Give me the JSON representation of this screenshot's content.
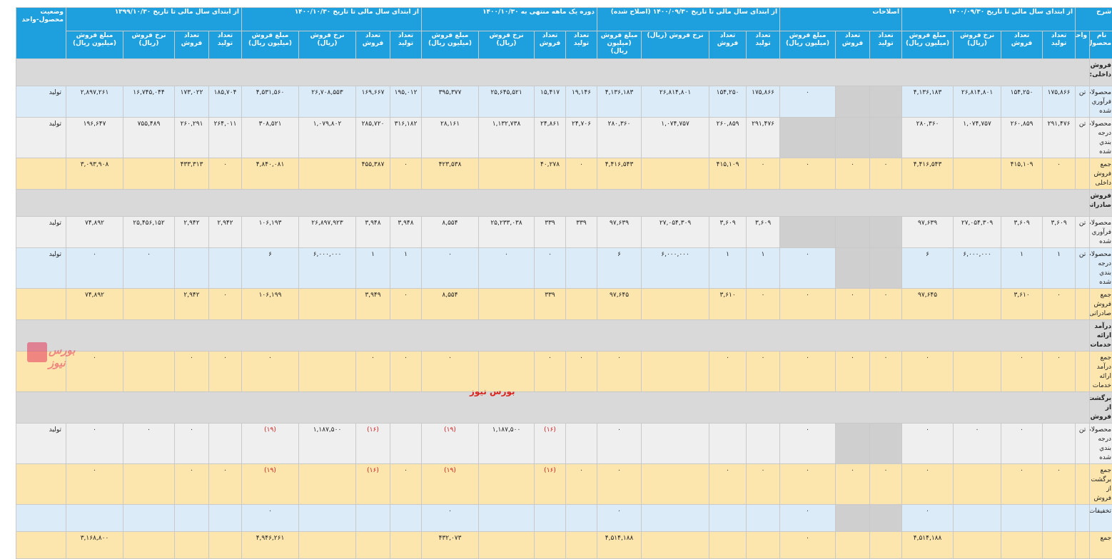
{
  "header": {
    "groups": [
      "شرح",
      "از ابتدای سال مالی تا تاریخ ۱۴۰۰/۰۹/۳۰",
      "اصلاحات",
      "از ابتدای سال مالی تا تاریخ ۱۴۰۰/۰۹/۳۰ (اصلاح شده)",
      "دوره یک ماهه منتهی به ۱۴۰۰/۱۰/۳۰",
      "از ابتدای سال مالی تا تاریخ ۱۴۰۰/۱۰/۳۰",
      "از ابتدای سال مالی تا تاریخ ۱۳۹۹/۱۰/۳۰"
    ],
    "status_col": "وضعیت محصول-واحد",
    "name_col": "نام محصول",
    "unit_col": "واحد",
    "sub": {
      "produce": "تعداد تولید",
      "sell": "تعداد فروش",
      "rate": "نرخ فروش (ریال)",
      "amount": "مبلغ فروش (میلیون ریال)"
    }
  },
  "rows": [
    {
      "type": "section",
      "name": "فروش داخلی:"
    },
    {
      "type": "light",
      "name": "محصولات فرآوري شده",
      "unit": "تن",
      "v": [
        "۱۷۵,۸۶۶",
        "۱۵۴,۲۵۰",
        "۲۶,۸۱۴,۸۰۱",
        "۴,۱۳۶,۱۸۳",
        "",
        "",
        "۰",
        "۱۷۵,۸۶۶",
        "۱۵۴,۲۵۰",
        "۲۶,۸۱۴,۸۰۱",
        "۴,۱۳۶,۱۸۳",
        "۱۹,۱۴۶",
        "۱۵,۴۱۷",
        "۲۵,۶۴۵,۵۲۱",
        "۳۹۵,۳۷۷",
        "۱۹۵,۰۱۲",
        "۱۶۹,۶۶۷",
        "۲۶,۷۰۸,۵۵۳",
        "۴,۵۳۱,۵۶۰",
        "۱۸۵,۷۰۴",
        "۱۷۳,۰۲۲",
        "۱۶,۷۴۵,۰۴۴",
        "۲,۸۹۷,۲۶۱"
      ],
      "status": "تولید"
    },
    {
      "type": "grey",
      "name": "محصولات درجه بندي شده",
      "unit": "تن",
      "v": [
        "۲۹۱,۴۷۶",
        "۲۶۰,۸۵۹",
        "۱,۰۷۴,۷۵۷",
        "۲۸۰,۳۶۰",
        "",
        "",
        "",
        "۲۹۱,۴۷۶",
        "۲۶۰,۸۵۹",
        "۱,۰۷۴,۷۵۷",
        "۲۸۰,۳۶۰",
        "۲۴,۷۰۶",
        "۲۴,۸۶۱",
        "۱,۱۳۲,۷۳۸",
        "۲۸,۱۶۱",
        "۳۱۶,۱۸۲",
        "۲۸۵,۷۲۰",
        "۱,۰۷۹,۸۰۲",
        "۳۰۸,۵۲۱",
        "۲۶۴,۰۱۱",
        "۲۶۰,۲۹۱",
        "۷۵۵,۴۸۹",
        "۱۹۶,۶۴۷"
      ],
      "status": "تولید"
    },
    {
      "type": "total",
      "name": "جمع فروش داخلی",
      "unit": "",
      "v": [
        "۰",
        "۴۱۵,۱۰۹",
        "",
        "۴,۴۱۶,۵۴۳",
        "۰",
        "۰",
        "۰",
        "۰",
        "۴۱۵,۱۰۹",
        "",
        "۴,۴۱۶,۵۴۳",
        "۰",
        "۴۰,۲۷۸",
        "",
        "۴۲۳,۵۳۸",
        "۰",
        "۴۵۵,۳۸۷",
        "",
        "۴,۸۴۰,۰۸۱",
        "۰",
        "۴۳۳,۳۱۳",
        "",
        "۳,۰۹۳,۹۰۸"
      ],
      "status": ""
    },
    {
      "type": "section",
      "name": "فروش صادراتی:"
    },
    {
      "type": "grey",
      "name": "محصولات فرآوري شده",
      "unit": "تن",
      "v": [
        "۳,۶۰۹",
        "۳,۶۰۹",
        "۲۷,۰۵۴,۳۰۹",
        "۹۷,۶۳۹",
        "",
        "",
        "",
        "۳,۶۰۹",
        "۳,۶۰۹",
        "۲۷,۰۵۴,۳۰۹",
        "۹۷,۶۳۹",
        "۳۳۹",
        "۳۳۹",
        "۲۵,۲۳۳,۰۳۸",
        "۸,۵۵۴",
        "۳,۹۴۸",
        "۳,۹۴۸",
        "۲۶,۸۹۷,۹۲۳",
        "۱۰۶,۱۹۳",
        "۲,۹۴۲",
        "۲,۹۴۲",
        "۲۵,۴۵۶,۱۵۲",
        "۷۴,۸۹۲"
      ],
      "status": "تولید"
    },
    {
      "type": "light",
      "name": "محصولات درجه بندي شده",
      "unit": "تن",
      "v": [
        "۱",
        "۱",
        "۶,۰۰۰,۰۰۰",
        "۶",
        "",
        "",
        "۰",
        "۱",
        "۱",
        "۶,۰۰۰,۰۰۰",
        "۶",
        "",
        "۰",
        "۰",
        "۰",
        "۱",
        "۱",
        "۶,۰۰۰,۰۰۰",
        "۶",
        "",
        "",
        "۰",
        "۰"
      ],
      "status": "تولید"
    },
    {
      "type": "total",
      "name": "جمع فروش صادراتی",
      "unit": "",
      "v": [
        "۰",
        "۳,۶۱۰",
        "",
        "۹۷,۶۴۵",
        "۰",
        "۰",
        "۰",
        "۰",
        "۳,۶۱۰",
        "",
        "۹۷,۶۴۵",
        "",
        "۳۳۹",
        "",
        "۸,۵۵۴",
        "۰",
        "۳,۹۴۹",
        "",
        "۱۰۶,۱۹۹",
        "۰",
        "۲,۹۴۲",
        "",
        "۷۴,۸۹۲"
      ],
      "status": ""
    },
    {
      "type": "section",
      "name": "درآمد ارائه خدمات:"
    },
    {
      "type": "total",
      "name": "جمع درآمد ارائه خدمات",
      "unit": "",
      "v": [
        "۰",
        "۰",
        "",
        "۰",
        "۰",
        "۰",
        "۰",
        "۰",
        "۰",
        "",
        "۰",
        "۰",
        "۰",
        "",
        "۰",
        "۰",
        "۰",
        "",
        "۰",
        "۰",
        "۰",
        "",
        "۰"
      ],
      "status": ""
    },
    {
      "type": "section",
      "name": "برگشت از فروش:"
    },
    {
      "type": "grey",
      "name": "محصولات درجه بندي شده",
      "unit": "تن",
      "v": [
        "",
        "۰",
        "۰",
        "۰",
        "",
        "",
        "۰",
        "",
        "",
        "",
        "۰",
        "",
        "(۱۶)",
        "۱,۱۸۷,۵۰۰",
        "(۱۹)",
        "",
        "(۱۶)",
        "۱,۱۸۷,۵۰۰",
        "(۱۹)",
        "",
        "۰",
        "۰",
        "۰"
      ],
      "status": "تولید"
    },
    {
      "type": "total",
      "name": "جمع برگشت از فروش",
      "unit": "",
      "v": [
        "۰",
        "۰",
        "",
        "۰",
        "۰",
        "۰",
        "۰",
        "۰",
        "۰",
        "",
        "۰",
        "۰",
        "(۱۶)",
        "",
        "(۱۹)",
        "۰",
        "(۱۶)",
        "",
        "(۱۹)",
        "۰",
        "۰",
        "",
        "۰"
      ],
      "status": ""
    },
    {
      "type": "light",
      "name": "تخفیفات",
      "unit": "",
      "v": [
        "",
        "",
        "",
        "۰",
        "",
        "",
        "۰",
        "",
        "",
        "",
        "۰",
        "",
        "",
        "",
        "۰",
        "",
        "",
        "",
        "۰",
        "",
        "",
        "",
        ""
      ],
      "status": ""
    },
    {
      "type": "total",
      "name": "جمع",
      "unit": "",
      "v": [
        "",
        "",
        "",
        "۴,۵۱۴,۱۸۸",
        "",
        "",
        "۰",
        "",
        "",
        "",
        "۴,۵۱۴,۱۸۸",
        "",
        "",
        "",
        "۴۳۲,۰۷۳",
        "",
        "",
        "",
        "۴,۹۴۶,۲۶۱",
        "",
        "",
        "",
        "۳,۱۶۸,۸۰۰"
      ],
      "status": ""
    }
  ],
  "watermark": "بورس نیوز",
  "footer_brand": "بورس نیوز"
}
